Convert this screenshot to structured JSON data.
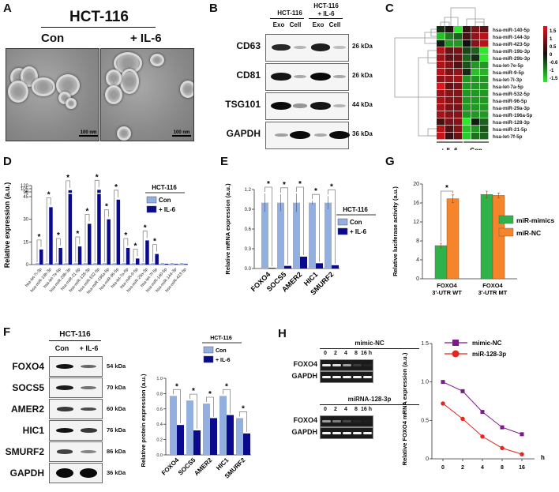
{
  "panels": {
    "A": {
      "label": "A",
      "title": "HCT-116",
      "conditions": [
        "Con",
        "+ IL-6"
      ],
      "scale_bar": "100 nm"
    },
    "B": {
      "label": "B",
      "groups": [
        "HCT-116",
        "HCT-116\n+ IL-6"
      ],
      "group_line1": "HCT-116",
      "group2_line1": "HCT-116",
      "group2_line2": "+ IL-6",
      "lanes": [
        "Exo",
        "Cell",
        "Exo",
        "Cell"
      ],
      "rows": [
        {
          "protein": "CD63",
          "size": "26 kDa",
          "intensity": [
            0.85,
            0.15,
            0.9,
            0.1
          ]
        },
        {
          "protein": "CD81",
          "size": "26 kDa",
          "intensity": [
            0.95,
            0.2,
            1.0,
            0.2
          ]
        },
        {
          "protein": "TSG101",
          "size": "44 kDa",
          "intensity": [
            1.0,
            0.3,
            0.95,
            0.15
          ]
        },
        {
          "protein": "GAPDH",
          "size": "36 kDa",
          "intensity": [
            0.25,
            1.0,
            0.2,
            1.0
          ]
        }
      ]
    },
    "C": {
      "label": "C",
      "group_labels": [
        "+ IL-6",
        "Con"
      ],
      "colorbar_ticks": [
        "1.5",
        "1",
        "0.5",
        "0",
        "-0.6",
        "-1",
        "-1.5"
      ],
      "colors": {
        "high": "#e0141c",
        "mid": "#111111",
        "low": "#2ee82e"
      }
    },
    "D": {
      "label": "D"
    },
    "E": {
      "label": "E"
    },
    "F": {
      "label": "F",
      "title": "HCT-116",
      "lanes": [
        "Con",
        "+ IL-6"
      ],
      "rows": [
        {
          "protein": "FOXO4",
          "size": "54 kDa"
        },
        {
          "protein": "SOCS5",
          "size": "70 kDa"
        },
        {
          "protein": "AMER2",
          "size": "60 kDa"
        },
        {
          "protein": "HIC1",
          "size": "76 kDa"
        },
        {
          "protein": "SMURF2",
          "size": "86 kDa"
        },
        {
          "protein": "GAPDH",
          "size": "36 kDa"
        }
      ]
    },
    "G": {
      "label": "G"
    },
    "H": {
      "label": "H",
      "gels": [
        {
          "title": "mimic-NC",
          "timepoints": [
            "0",
            "2",
            "4",
            "8",
            "16 h"
          ],
          "rows": [
            "FOXO4",
            "GAPDH"
          ],
          "foxo4_intensity": [
            0.95,
            0.9,
            0.6,
            0.15,
            0.05
          ]
        },
        {
          "title": "miRNA-128-3p",
          "timepoints": [
            "0",
            "2",
            "4",
            "8",
            "16 h"
          ],
          "rows": [
            "FOXO4",
            "GAPDH"
          ],
          "foxo4_intensity": [
            0.6,
            0.45,
            0.2,
            0.05,
            0.02
          ]
        }
      ]
    }
  },
  "chart_data": [
    {
      "id": "C",
      "type": "heatmap",
      "title": "",
      "rows": [
        "hsa-miR-140-5p",
        "hsa-miR-144-3p",
        "hsa-miR-423-5p",
        "hsa-miR-19b-3p",
        "hsa-miR-29b-3p",
        "hsa-let-7e-5p",
        "hsa-miR-9-5p",
        "hsa-let-7i-3p",
        "hsa-let-7a-5p",
        "hsa-miR-532-5p",
        "hsa-miR-96-5p",
        "hsa-miR-29a-3p",
        "hsa-miR-196a-5p",
        "hsa-miR-128-3p",
        "hsa-miR-21-5p",
        "hsa-let-7f-5p"
      ],
      "columns": [
        "+ IL-6 1",
        "+ IL-6 2",
        "+ IL-6 3",
        "Con 1",
        "Con 2",
        "Con 3"
      ],
      "values": [
        [
          -0.2,
          0.1,
          -1.6,
          0.3,
          0.8,
          0.6
        ],
        [
          -1.3,
          -0.8,
          -0.6,
          0.4,
          1.0,
          1.3
        ],
        [
          -0.1,
          -1.0,
          -1.0,
          0.0,
          0.9,
          1.3
        ],
        [
          1.3,
          0.7,
          0.8,
          -0.4,
          -0.6,
          -1.6
        ],
        [
          1.1,
          0.6,
          0.7,
          -0.6,
          -0.2,
          -1.6
        ],
        [
          1.2,
          0.9,
          0.5,
          -0.5,
          -1.0,
          -1.0
        ],
        [
          1.3,
          0.8,
          1.0,
          -0.2,
          -1.3,
          -1.2
        ],
        [
          1.0,
          1.0,
          1.1,
          -1.0,
          -1.0,
          -1.0
        ],
        [
          1.6,
          0.6,
          0.8,
          -1.0,
          -1.0,
          -1.0
        ],
        [
          1.1,
          0.9,
          0.9,
          -1.0,
          -1.0,
          -1.0
        ],
        [
          1.2,
          0.9,
          0.9,
          -1.0,
          -1.0,
          -1.0
        ],
        [
          1.2,
          0.8,
          0.8,
          -1.0,
          -1.0,
          -1.0
        ],
        [
          1.1,
          0.9,
          0.9,
          -1.0,
          -1.0,
          -1.0
        ],
        [
          0.4,
          0.8,
          0.9,
          -1.6,
          -0.1,
          -0.6
        ],
        [
          1.3,
          0.5,
          0.9,
          -1.3,
          -1.0,
          -0.5
        ],
        [
          1.4,
          0.3,
          0.7,
          -1.4,
          -0.7,
          -0.6
        ]
      ],
      "colorbar_range": [
        -1.5,
        1.5
      ],
      "xlabel": "",
      "ylabel": ""
    },
    {
      "id": "D",
      "type": "bar",
      "title": "",
      "legend_title": "HCT-116",
      "legend_position": "top-right",
      "ylabel": "Relative expression (a.u.)",
      "xlabel": "",
      "y_ticks": [
        "0",
        "15",
        "30",
        "45",
        "90",
        "105",
        "120"
      ],
      "axis_break": "between 45 and 90",
      "ylim": [
        0,
        120
      ],
      "categories": [
        "hsa-let-7i-3p",
        "hsa-miR-19b-3p",
        "hsa-let-7e-5p",
        "hsa-miR-29b-3p",
        "hsa-miR-21-5p",
        "hsa-miR-128-3p",
        "hsa-miR-532-5p",
        "hsa-miR-196a-5p",
        "hsa-miR-96-5p",
        "hsa-let-7a-5p",
        "hsa-miR-9-5p",
        "hsa-miR-29a-3p",
        "hsa-let-7f-5p",
        "hsa-miR-140-5p",
        "hsa-miR-144-3p",
        "hsa-miR-423-5p"
      ],
      "series": [
        {
          "name": "Con",
          "color": "#92afe0",
          "values": [
            1,
            1,
            1,
            1,
            1,
            1,
            1,
            1,
            1,
            1,
            1,
            1,
            1,
            1,
            1,
            1
          ]
        },
        {
          "name": "+ IL-6",
          "color": "#0a0a8c",
          "values": [
            10,
            38,
            11,
            98,
            12,
            27,
            100,
            30,
            43,
            11,
            4,
            16,
            7,
            0.5,
            0.4,
            0.4
          ]
        }
      ],
      "significant": [
        true,
        true,
        true,
        true,
        true,
        true,
        true,
        true,
        true,
        true,
        true,
        true,
        true,
        false,
        false,
        false
      ]
    },
    {
      "id": "E",
      "type": "bar",
      "title": "",
      "legend_title": "HCT-116",
      "legend_position": "right",
      "ylabel": "Relative mRNA expression (a.u.)",
      "xlabel": "",
      "ylim": [
        0,
        1.2
      ],
      "y_ticks": [
        "0.0",
        "0.3",
        "0.6",
        "0.9",
        "1.2"
      ],
      "categories": [
        "FOXO4",
        "SOCS5",
        "AMER2",
        "HIC1",
        "SMURF2"
      ],
      "series": [
        {
          "name": "Con",
          "color": "#92afe0",
          "values": [
            1.0,
            1.0,
            1.0,
            1.0,
            1.0
          ],
          "errors": [
            0.14,
            0.13,
            0.14,
            0.03,
            0.1
          ]
        },
        {
          "name": "+ IL-6",
          "color": "#0a0a8c",
          "values": [
            0.01,
            0.04,
            0.18,
            0.08,
            0.05
          ]
        }
      ],
      "significant": [
        true,
        true,
        true,
        true,
        true
      ]
    },
    {
      "id": "F",
      "type": "bar",
      "title": "",
      "legend_title": "HCT-116",
      "legend_position": "top-right",
      "ylabel": "Relative protein expression (a.u.)",
      "xlabel": "",
      "ylim": [
        0,
        1.0
      ],
      "y_ticks": [
        "0.0",
        "0.2",
        "0.4",
        "0.6",
        "0.8",
        "1.0"
      ],
      "categories": [
        "FOXO4",
        "SOCS5",
        "AMER2",
        "HIC1",
        "SMURF2"
      ],
      "series": [
        {
          "name": "Con",
          "color": "#92afe0",
          "values": [
            0.77,
            0.71,
            0.67,
            0.77,
            0.48
          ]
        },
        {
          "name": "+ IL-6",
          "color": "#0a0a8c",
          "values": [
            0.39,
            0.32,
            0.48,
            0.52,
            0.28
          ]
        }
      ],
      "significant": [
        true,
        true,
        true,
        true,
        true
      ]
    },
    {
      "id": "G",
      "type": "bar",
      "title": "",
      "legend_position": "right",
      "ylabel": "Relative luciferase activity (a.u.)",
      "xlabel": "",
      "ylim": [
        0,
        20
      ],
      "y_ticks": [
        "0",
        "4",
        "8",
        "12",
        "16",
        "20"
      ],
      "categories": [
        "FOXO4\n3'-UTR WT",
        "FOXO4\n3'-UTR MT"
      ],
      "category_lines": [
        [
          "FOXO4",
          "3'-UTR WT"
        ],
        [
          "FOXO4",
          "3'-UTR MT"
        ]
      ],
      "series": [
        {
          "name": "miR-mimics",
          "color": "#2fb24a",
          "values": [
            7.0,
            17.8
          ],
          "errors": [
            0.5,
            0.7
          ]
        },
        {
          "name": "miR-NC",
          "color": "#f5842a",
          "values": [
            16.9,
            17.6
          ],
          "errors": [
            0.8,
            0.5
          ]
        }
      ],
      "significant": [
        true,
        false
      ]
    },
    {
      "id": "H",
      "type": "line",
      "title": "",
      "legend_position": "top",
      "ylabel": "Relative FOXO4 mRNA expression (a.u.)",
      "xlabel": "h",
      "x": [
        "0",
        "2",
        "4",
        "8",
        "16"
      ],
      "ylim": [
        0,
        1.5
      ],
      "y_ticks": [
        "0",
        "0.5",
        "1.0",
        "1.5"
      ],
      "series": [
        {
          "name": "mimic-NC",
          "color": "#7b1a8c",
          "marker": "square",
          "values": [
            1.0,
            0.88,
            0.61,
            0.41,
            0.32
          ]
        },
        {
          "name": "miR-128-3p",
          "color": "#e8241c",
          "marker": "circle",
          "values": [
            0.72,
            0.52,
            0.29,
            0.14,
            0.06
          ]
        }
      ]
    }
  ]
}
